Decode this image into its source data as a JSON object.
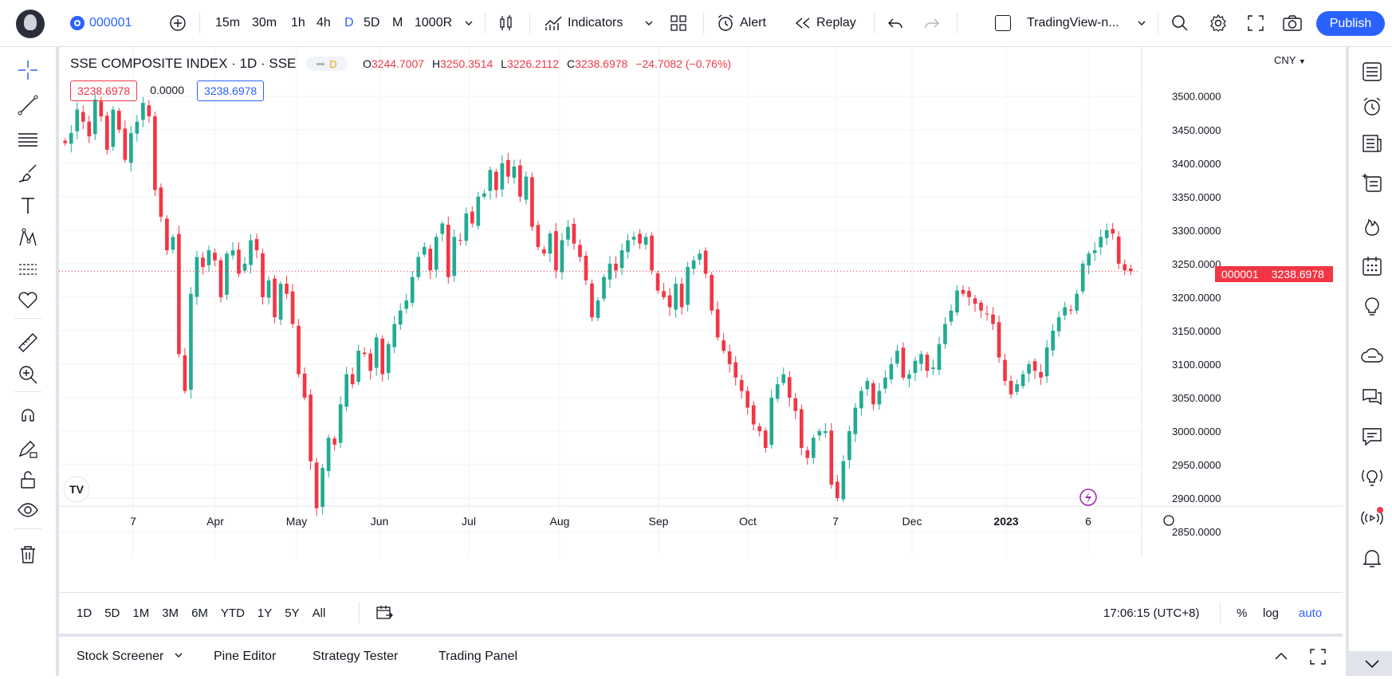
{
  "toolbar": {
    "symbol": "000001",
    "intervals": [
      "15m",
      "30m",
      "1h",
      "4h",
      "D",
      "5D",
      "M",
      "1000R"
    ],
    "indicators_label": "Indicators",
    "alert_label": "Alert",
    "replay_label": "Replay",
    "layout_name": "TradingView-n...",
    "publish_label": "Publish"
  },
  "legend": {
    "title": "SSE COMPOSITE INDEX · 1D · SSE",
    "badge": "D",
    "o_label": "O",
    "o_value": "3244.7007",
    "h_label": "H",
    "h_value": "3250.3514",
    "l_label": "L",
    "l_value": "3226.2112",
    "c_label": "C",
    "c_value": "3238.6978",
    "change": "−24.7082 (−0.76%)",
    "bid": "3238.6978",
    "spread": "0.0000",
    "ask": "3238.6978"
  },
  "price_axis": {
    "currency": "CNY",
    "last_symbol": "000001",
    "last_price": "3238.6978"
  },
  "colors": {
    "up": "#22ab94",
    "down": "#f23645",
    "accent": "#2962ff",
    "grid": "#f0f3fa"
  },
  "chart_data": {
    "type": "candlestick",
    "y_ticks": [
      2850,
      2900,
      2950,
      3000,
      3050,
      3100,
      3150,
      3200,
      3250,
      3300,
      3350,
      3400,
      3450,
      3500
    ],
    "ylim": [
      2812,
      3533
    ],
    "x_tick_labels": [
      "7",
      "Apr",
      "May",
      "Jun",
      "Jul",
      "Aug",
      "Sep",
      "Oct",
      "7",
      "Dec",
      "2023",
      "6"
    ],
    "closes": [
      3430,
      3445,
      3480,
      3462,
      3440,
      3495,
      3470,
      3420,
      3480,
      3450,
      3405,
      3445,
      3462,
      3490,
      3470,
      3360,
      3320,
      3270,
      3290,
      3115,
      3060,
      3205,
      3260,
      3245,
      3270,
      3255,
      3200,
      3265,
      3270,
      3235,
      3250,
      3285,
      3270,
      3200,
      3225,
      3170,
      3220,
      3205,
      3160,
      3085,
      3050,
      2955,
      2885,
      2945,
      2990,
      2980,
      3040,
      3085,
      3070,
      3120,
      3115,
      3090,
      3140,
      3085,
      3130,
      3160,
      3180,
      3195,
      3230,
      3260,
      3275,
      3240,
      3290,
      3310,
      3230,
      3290,
      3285,
      3325,
      3310,
      3350,
      3355,
      3390,
      3360,
      3400,
      3380,
      3395,
      3350,
      3380,
      3305,
      3275,
      3265,
      3295,
      3240,
      3285,
      3305,
      3280,
      3260,
      3225,
      3170,
      3195,
      3230,
      3250,
      3240,
      3270,
      3285,
      3290,
      3280,
      3290,
      3240,
      3210,
      3200,
      3185,
      3220,
      3185,
      3245,
      3255,
      3265,
      3235,
      3180,
      3140,
      3120,
      3100,
      3080,
      3060,
      3035,
      3010,
      3000,
      2975,
      3050,
      3070,
      3085,
      3050,
      3030,
      2975,
      2960,
      2990,
      3000,
      3000,
      2920,
      2900,
      2955,
      3000,
      3035,
      3060,
      3075,
      3040,
      3060,
      3080,
      3100,
      3120,
      3080,
      3085,
      3105,
      3115,
      3090,
      3095,
      3130,
      3160,
      3180,
      3210,
      3205,
      3200,
      3190,
      3180,
      3175,
      3160,
      3110,
      3075,
      3055,
      3070,
      3085,
      3100,
      3090,
      3080,
      3125,
      3150,
      3170,
      3185,
      3180,
      3205,
      3250,
      3265,
      3270,
      3290,
      3300,
      3295,
      3250,
      3240,
      3238.7
    ]
  },
  "time_range": {
    "buttons": [
      "1D",
      "5D",
      "1M",
      "3M",
      "6M",
      "YTD",
      "1Y",
      "5Y",
      "All"
    ],
    "clock": "17:06:15 (UTC+8)",
    "percent_label": "%",
    "log_label": "log",
    "auto_label": "auto"
  },
  "bottom_tabs": [
    "Stock Screener",
    "Pine Editor",
    "Strategy Tester",
    "Trading Panel"
  ]
}
